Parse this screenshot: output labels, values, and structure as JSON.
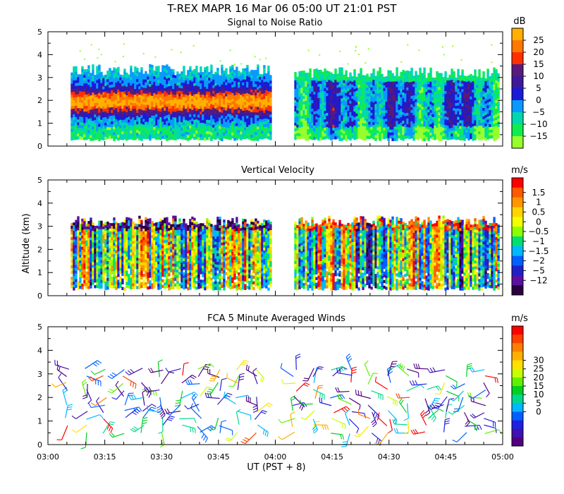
{
  "figure": {
    "title": "T-REX   MAPR 16 Mar 06   05:00 UT   21:01   PST",
    "xlabel": "UT  (PST + 8)",
    "ylabel": "Altitude (km)"
  },
  "chart_data": [
    {
      "type": "heatmap",
      "title": "Signal to Noise Ratio",
      "unit": "dB",
      "x_range": [
        "03:00",
        "05:00"
      ],
      "ylim": [
        0,
        5
      ],
      "y_ticks": [
        "0",
        "1",
        "2",
        "3",
        "4",
        "5"
      ],
      "data_extent": {
        "segments": [
          [
            "03:06",
            "03:59"
          ],
          [
            "04:05",
            "04:59"
          ]
        ],
        "alt_range_km": [
          0.4,
          3.6
        ]
      },
      "colorbar": {
        "labels": [
          "25",
          "20",
          "15",
          "10",
          "5",
          "0",
          "−5",
          "−10",
          "−15"
        ],
        "colors": [
          "#ffb000",
          "#ff7800",
          "#ff3000",
          "#5a1a7a",
          "#3c1a9a",
          "#1a1ad8",
          "#0a9aff",
          "#00d8b0",
          "#10ec50",
          "#96ff2c"
        ]
      }
    },
    {
      "type": "heatmap",
      "title": "Vertical Velocity",
      "unit": "m/s",
      "x_range": [
        "03:00",
        "05:00"
      ],
      "ylim": [
        0,
        5
      ],
      "y_ticks": [
        "0",
        "1",
        "2",
        "3",
        "4",
        "5"
      ],
      "data_extent": {
        "segments": [
          [
            "03:06",
            "03:59"
          ],
          [
            "04:05",
            "04:59"
          ]
        ],
        "alt_range_km": [
          0.4,
          3.6
        ]
      },
      "colorbar": {
        "labels": [
          "1.5",
          "1",
          "0.5",
          "0",
          "−0.5",
          "−1",
          "−1.5",
          "−2",
          "−5",
          "−12"
        ],
        "colors": [
          "#ff0000",
          "#ff5a00",
          "#ff9600",
          "#ffd400",
          "#f4ff00",
          "#8cff00",
          "#00e070",
          "#00b8ff",
          "#0060ff",
          "#2020c8",
          "#5a10a0",
          "#2a0040"
        ]
      }
    },
    {
      "type": "scatter",
      "title": "FCA 5 Minute Averaged Winds",
      "unit": "m/s",
      "x_range": [
        "03:00",
        "05:00"
      ],
      "x_ticks": [
        "03:00",
        "03:15",
        "03:30",
        "03:45",
        "04:00",
        "04:15",
        "04:30",
        "04:45",
        "05:00"
      ],
      "ylim": [
        0,
        5
      ],
      "y_ticks": [
        "0",
        "1",
        "2",
        "3",
        "4",
        "5"
      ],
      "glyph": "wind barb",
      "colorbar": {
        "labels": [
          "30",
          "25",
          "20",
          "15",
          "10",
          "5",
          "0"
        ],
        "colors": [
          "#ff0000",
          "#ff4000",
          "#ff8000",
          "#ffb000",
          "#ffe000",
          "#c8ff00",
          "#60f000",
          "#00d020",
          "#00d890",
          "#00b8ff",
          "#0060ff",
          "#2020e0",
          "#4010b0",
          "#500080"
        ]
      }
    }
  ]
}
